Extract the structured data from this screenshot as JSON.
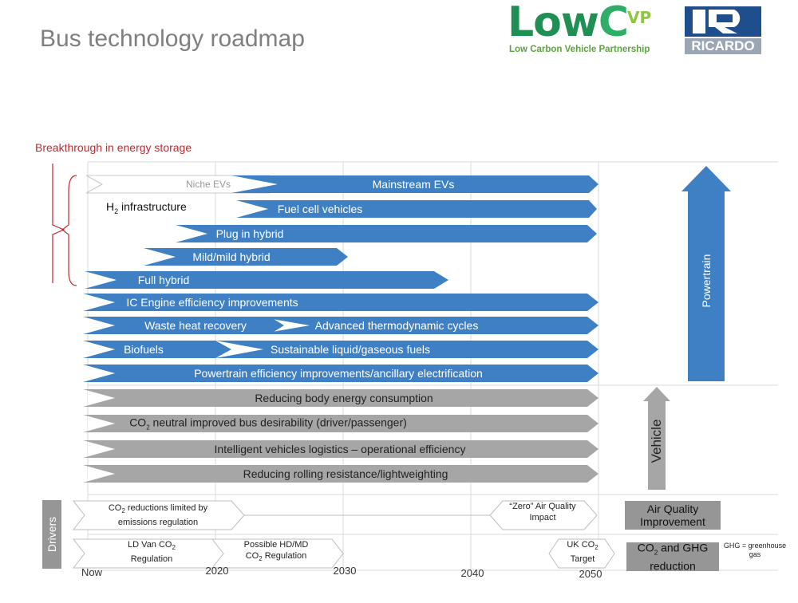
{
  "title": "Bus technology roadmap",
  "logos": {
    "lowcvp_low": "Low",
    "lowcvp_c": "C",
    "lowcvp_vp": "VP",
    "lowcvp_sub": "Low Carbon Vehicle Partnership",
    "ricardo": "RICARDO"
  },
  "breakthrough": "Breakthrough in energy storage",
  "h2_infra": {
    "pre": "H",
    "sub": "2",
    "post": " infrastructure"
  },
  "axis": {
    "ticks": [
      "Now",
      "2020",
      "2030",
      "2040",
      "2050"
    ]
  },
  "colors": {
    "powertrain": "#3e80c3",
    "vehicle": "#a6a6a6",
    "category_box": "#969696",
    "bracket": "#c0282e"
  },
  "niche_evs": "Niche EVs",
  "powertrain_bars": [
    {
      "label": "Mainstream EVs"
    },
    {
      "label": "Fuel cell vehicles"
    },
    {
      "label": "Plug in hybrid"
    },
    {
      "label": "Mild/mild hybrid"
    },
    {
      "label": "Full hybrid"
    },
    {
      "label": "IC Engine efficiency improvements"
    },
    {
      "label": "Waste heat recovery"
    },
    {
      "label": "Advanced thermodynamic cycles"
    },
    {
      "label": "Biofuels"
    },
    {
      "label": "Sustainable liquid/gaseous fuels"
    },
    {
      "label": "Powertrain efficiency improvements/ancillary electrification"
    }
  ],
  "vehicle_bars": [
    {
      "label": "Reducing body energy consumption"
    },
    {
      "pre": "CO",
      "sub": "2",
      "post": " neutral improved bus desirability (driver/passenger)"
    },
    {
      "label": "Intelligent vehicles logistics – operational efficiency"
    },
    {
      "label": "Reducing rolling resistance/lightweighting"
    }
  ],
  "drivers": {
    "title": "Drivers",
    "co2_limited": {
      "line1_pre": "CO",
      "line1_sub": "2",
      "line1_post": " reductions limited by",
      "line2": "emissions regulation"
    },
    "zero_aq": {
      "line1": "“Zero” Air Quality",
      "line2": "Impact"
    },
    "ld_van": {
      "line1_pre": "LD Van CO",
      "line1_sub": "2",
      "line2": "Regulation"
    },
    "hd_md": {
      "line1": "Possible HD/MD",
      "line2_pre": "CO",
      "line2_sub": "2",
      "line2_post": " Regulation"
    },
    "uk_target": {
      "line1_pre": "UK CO",
      "line1_sub": "2",
      "line2": "Target"
    }
  },
  "categories": {
    "powertrain": "Powertrain",
    "vehicle": "Vehicle",
    "air_quality": {
      "line1": "Air Quality",
      "line2": "Improvement"
    },
    "co2_ghg": {
      "line1_pre": "CO",
      "line1_sub": "2",
      "line1_post": " and GHG",
      "line2": "reduction"
    }
  },
  "ghg_note": {
    "line1": "GHG = greenhouse",
    "line2": "gas"
  }
}
